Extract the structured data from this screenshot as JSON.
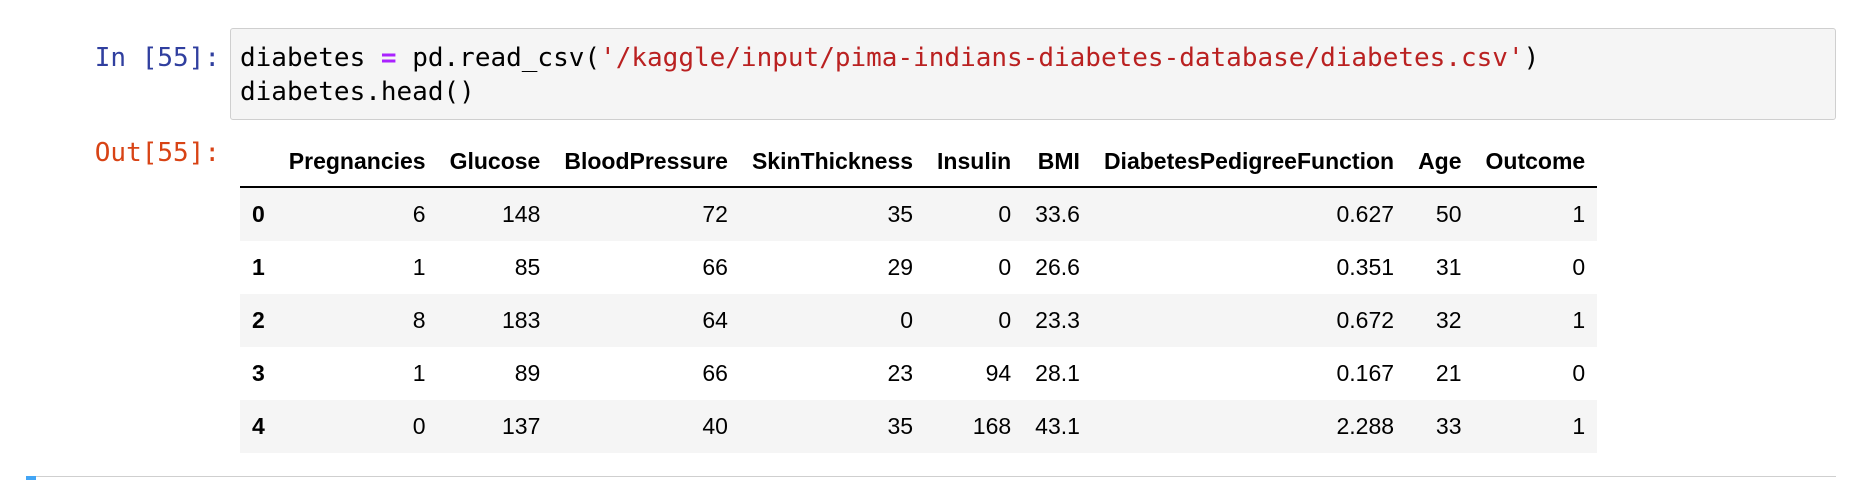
{
  "input_cell": {
    "prompt": "In [55]:",
    "code": {
      "line1_var": "diabetes ",
      "line1_op": "=",
      "line1_call": " pd.read_csv(",
      "line1_str": "'/kaggle/input/pima-indians-diabetes-database/diabetes.csv'",
      "line1_close": ")",
      "line2": "diabetes.head()"
    }
  },
  "output_cell": {
    "prompt": "Out[55]:",
    "dataframe": {
      "columns": [
        "Pregnancies",
        "Glucose",
        "BloodPressure",
        "SkinThickness",
        "Insulin",
        "BMI",
        "DiabetesPedigreeFunction",
        "Age",
        "Outcome"
      ],
      "rows": [
        {
          "index": "0",
          "values": [
            "6",
            "148",
            "72",
            "35",
            "0",
            "33.6",
            "0.627",
            "50",
            "1"
          ]
        },
        {
          "index": "1",
          "values": [
            "1",
            "85",
            "66",
            "29",
            "0",
            "26.6",
            "0.351",
            "31",
            "0"
          ]
        },
        {
          "index": "2",
          "values": [
            "8",
            "183",
            "64",
            "0",
            "0",
            "23.3",
            "0.672",
            "32",
            "1"
          ]
        },
        {
          "index": "3",
          "values": [
            "1",
            "89",
            "66",
            "23",
            "94",
            "28.1",
            "0.167",
            "21",
            "0"
          ]
        },
        {
          "index": "4",
          "values": [
            "0",
            "137",
            "40",
            "35",
            "168",
            "43.1",
            "2.288",
            "33",
            "1"
          ]
        }
      ]
    }
  },
  "colors": {
    "in_prompt": "#303f9f",
    "out_prompt": "#d84315",
    "string": "#ba2121",
    "operator": "#aa22ff",
    "selected_cell_marker": "#42a5f5"
  }
}
